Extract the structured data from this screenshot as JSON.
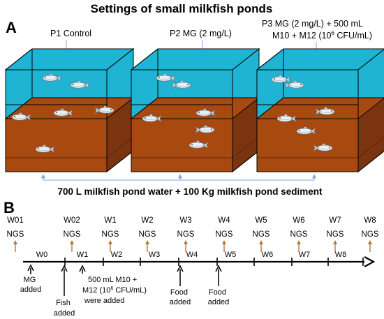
{
  "title": "Settings of small milkfish ponds",
  "panel_a": {
    "letter": "A",
    "ponds": [
      {
        "label_lines": [
          "P1  Control"
        ]
      },
      {
        "label_lines": [
          "P2  MG (2 mg/L)"
        ]
      },
      {
        "label_lines": [
          "P3  MG (2 mg/L) + 500 mL",
          "M10 + M12 (10",
          "6",
          " CFU/mL)"
        ]
      }
    ],
    "bottom_caption": "700 L milkfish pond water + 100 Kg milkfish pond sediment",
    "colors": {
      "water": "#1fb3d4",
      "sediment": "#a8490f",
      "sediment_edge": "#7a3510",
      "arrow": "#7fa6d8"
    }
  },
  "panel_b": {
    "letter": "B",
    "sampling_points": [
      "W01",
      "W02",
      "W1",
      "W2",
      "W3",
      "W4",
      "W5",
      "W6",
      "W7",
      "W8"
    ],
    "sampling_method": "NGS",
    "week_intervals": [
      "W0",
      "W1",
      "W2",
      "W3",
      "W4",
      "W5",
      "W6",
      "W7",
      "W8"
    ],
    "events": [
      {
        "lines": [
          "MG",
          "added"
        ]
      },
      {
        "lines": [
          "Fish",
          "added"
        ]
      },
      {
        "lines": [
          "500 mL M10 +",
          "M12 (10",
          "6",
          " CFU/mL)",
          "were added"
        ]
      },
      {
        "lines": [
          "Food",
          "added"
        ]
      },
      {
        "lines": [
          "Food",
          "added"
        ]
      }
    ],
    "colors": {
      "ngs_arrow": "#b07a3c"
    }
  }
}
